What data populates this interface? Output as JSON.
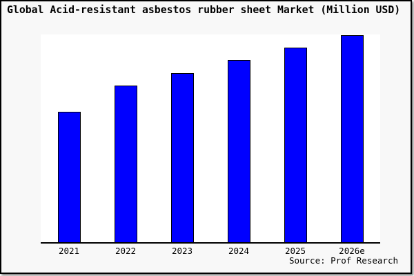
{
  "title": "Global Acid-resistant asbestos rubber sheet Market (Million USD)",
  "source": "Source: Prof Research",
  "colors": {
    "bar_fill": "#0000ff",
    "bar_border": "#000000",
    "card_background": "#f8f8f8",
    "plot_background": "#ffffff",
    "axis": "#000000",
    "text": "#000000"
  },
  "chart_data": {
    "type": "bar",
    "title": "Global Acid-resistant asbestos rubber sheet Market (Million USD)",
    "categories": [
      "2021",
      "2022",
      "2023",
      "2024",
      "2025",
      "2026e"
    ],
    "values": [
      63,
      75.5,
      81.5,
      88,
      94,
      100
    ],
    "value_note": "relative scale estimated from bar heights; no y-axis labels shown (2026e = 100)",
    "xlabel": "",
    "ylabel": "",
    "ylim": [
      0,
      101
    ],
    "grid": false,
    "legend": "none",
    "source": "Source: Prof Research"
  }
}
